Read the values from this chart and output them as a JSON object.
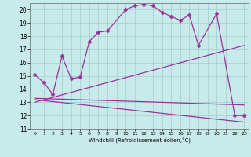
{
  "xlabel": "Windchill (Refroidissement éolien,°C)",
  "xlim": [
    -0.5,
    23.5
  ],
  "ylim": [
    11,
    20.5
  ],
  "yticks": [
    11,
    12,
    13,
    14,
    15,
    16,
    17,
    18,
    19,
    20
  ],
  "xticks": [
    0,
    1,
    2,
    3,
    4,
    5,
    6,
    7,
    8,
    9,
    10,
    11,
    12,
    13,
    14,
    15,
    16,
    17,
    18,
    19,
    20,
    21,
    22,
    23
  ],
  "background_color": "#c8eaea",
  "grid_color": "#a0cccc",
  "line_color": "#993399",
  "series": [
    {
      "x": [
        0,
        1,
        2,
        3,
        4,
        5,
        6,
        7,
        8,
        10,
        11,
        12,
        13,
        14,
        15,
        16,
        17,
        18,
        20,
        22,
        23
      ],
      "y": [
        15.1,
        14.5,
        13.6,
        16.5,
        14.8,
        14.9,
        17.6,
        18.3,
        18.4,
        20.0,
        20.3,
        20.4,
        20.3,
        19.8,
        19.5,
        19.2,
        19.6,
        17.3,
        19.7,
        12.0,
        12.0
      ],
      "marker": "D",
      "markersize": 2.5,
      "linewidth": 0.9
    },
    {
      "x": [
        0,
        23
      ],
      "y": [
        13.0,
        17.3
      ],
      "marker": null,
      "markersize": 0,
      "linewidth": 0.9
    },
    {
      "x": [
        0,
        23
      ],
      "y": [
        13.3,
        12.8
      ],
      "marker": null,
      "markersize": 0,
      "linewidth": 0.9
    },
    {
      "x": [
        0,
        23
      ],
      "y": [
        13.2,
        11.5
      ],
      "marker": null,
      "markersize": 0,
      "linewidth": 0.9
    }
  ]
}
